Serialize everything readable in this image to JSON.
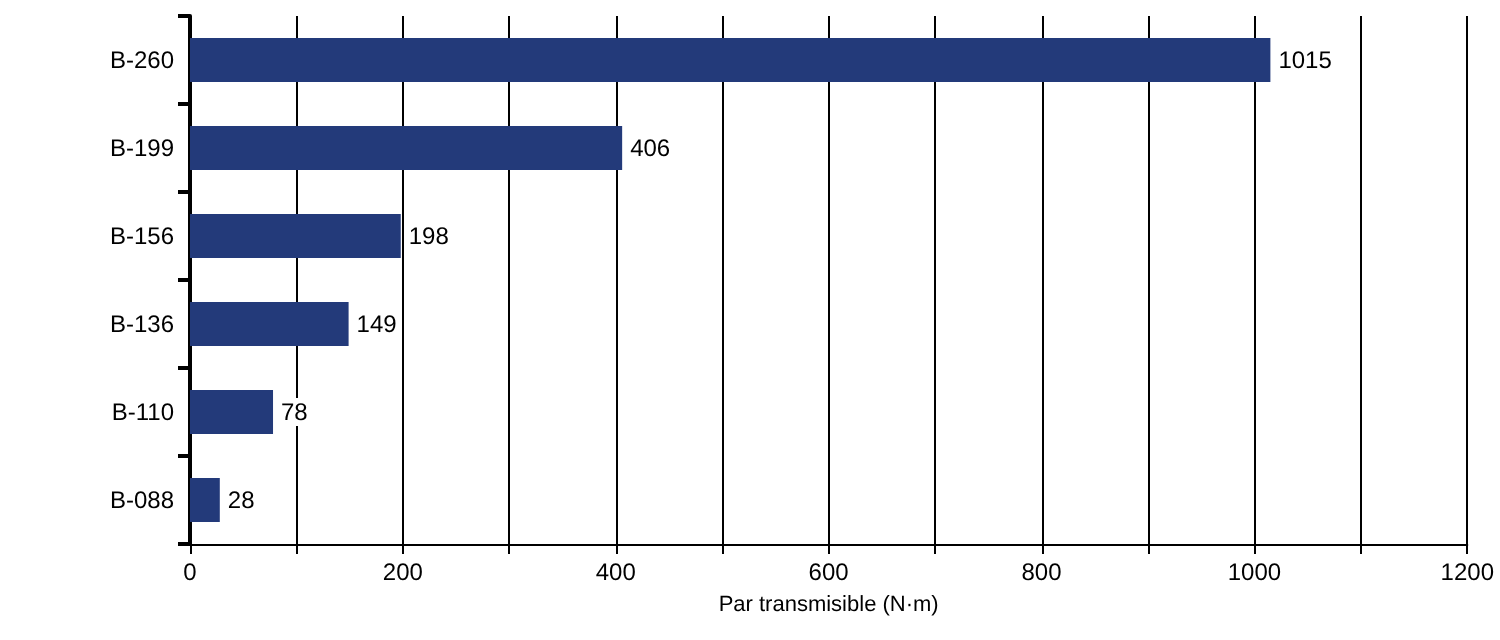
{
  "chart_data": {
    "type": "bar",
    "orientation": "horizontal",
    "xlabel": "Par transmisible (N·m)",
    "categories": [
      "B-260",
      "B-199",
      "B-156",
      "B-136",
      "B-110",
      "B-088"
    ],
    "values": [
      1015,
      406,
      198,
      149,
      78,
      28
    ],
    "color": "#233a7a",
    "data_labels": true,
    "xlim": [
      0,
      1200
    ],
    "xticks": [
      0,
      {
        "value": 100,
        "label": null
      },
      200,
      {
        "value": 300,
        "label": null
      },
      400,
      {
        "value": 500,
        "label": null
      },
      600,
      {
        "value": 700,
        "label": null
      },
      800,
      {
        "value": 900,
        "label": null
      },
      1000,
      {
        "value": 1100,
        "label": null
      },
      1200
    ],
    "grid": "x"
  }
}
